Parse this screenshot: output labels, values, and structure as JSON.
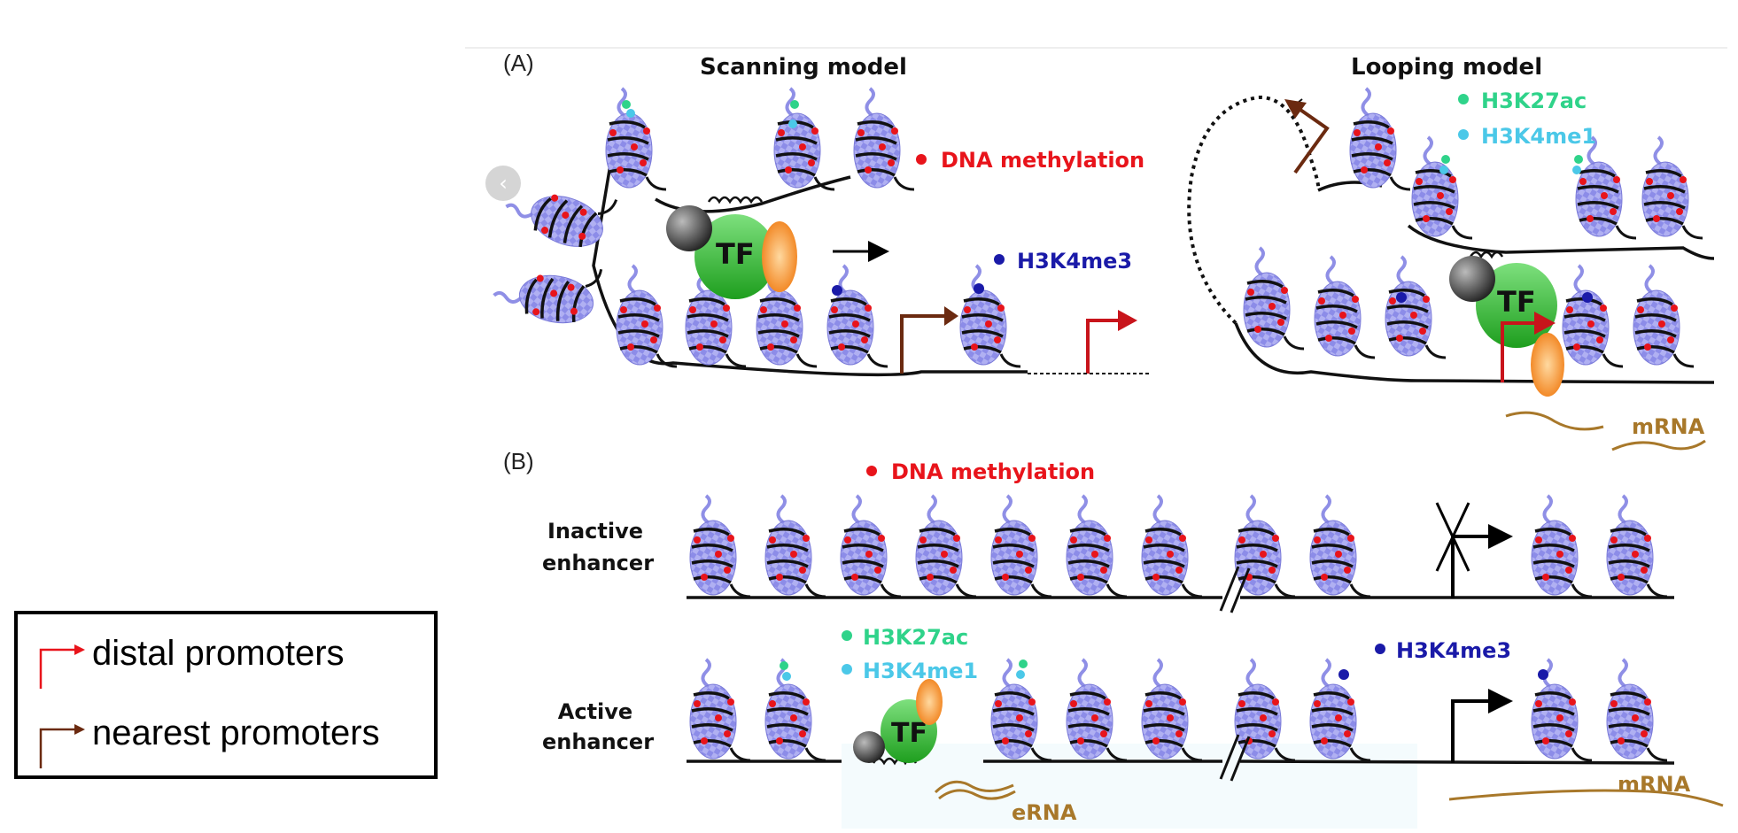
{
  "panel_a": {
    "label": "(A)",
    "scanning_title": "Scanning model",
    "looping_title": "Looping model",
    "dna_methylation": "DNA methylation",
    "h3k4me3": "H3K4me3",
    "h3k27ac": "H3K27ac",
    "h3k4me1": "H3K4me1",
    "tf": "TF",
    "mrna": "mRNA"
  },
  "panel_b": {
    "label": "(B)",
    "dna_methylation": "DNA methylation",
    "inactive_line1": "Inactive",
    "inactive_line2": "enhancer",
    "active_line1": "Active",
    "active_line2": "enhancer",
    "h3k27ac": "H3K27ac",
    "h3k4me1": "H3K4me1",
    "h3k4me3": "H3K4me3",
    "tf": "TF",
    "erna": "eRNA",
    "mrna": "mRNA"
  },
  "legend": {
    "distal": "distal promoters",
    "nearest": "nearest promoters"
  },
  "colors": {
    "nucleosome": "#8f8fe6",
    "methylation": "#e8141b",
    "h3k27ac": "#2fd38a",
    "h3k4me1": "#4bc8e8",
    "h3k4me3": "#1a1aa8",
    "tf": "#2ab42a",
    "orange": "#f07a10",
    "distal_arrow": "#c8141b",
    "nearest_arrow": "#6b2a10",
    "rna": "#a8782a"
  },
  "nav_icon": "chevron-left-icon"
}
